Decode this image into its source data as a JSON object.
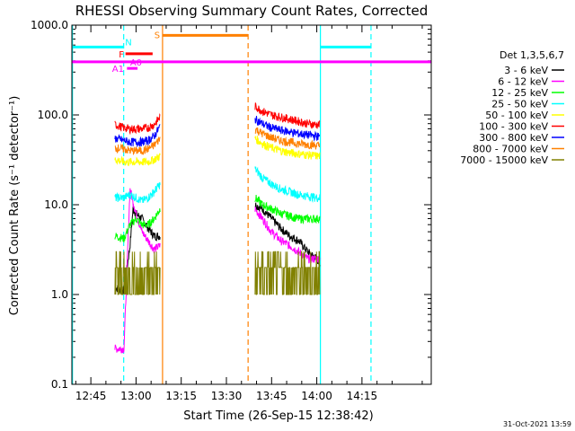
{
  "chart_data": {
    "type": "line",
    "title": "RHESSI Observing Summary Count Rates, Corrected",
    "xlabel": "Start Time (26-Sep-15 12:38:42)",
    "ylabel": "Corrected Count Rate (s⁻¹ detector⁻¹)",
    "ylog": true,
    "ylim": [
      0.1,
      1000
    ],
    "xlim_min": [
      38.7,
      158
    ],
    "x_ticks": [
      {
        "min": 45,
        "label": "12:45"
      },
      {
        "min": 60,
        "label": "13:00"
      },
      {
        "min": 75,
        "label": "13:15"
      },
      {
        "min": 90,
        "label": "13:30"
      },
      {
        "min": 105,
        "label": "13:45"
      },
      {
        "min": 120,
        "label": "14:00"
      },
      {
        "min": 135,
        "label": "14:15"
      }
    ],
    "y_ticks": [
      {
        "v": 0.1,
        "label": "0.1"
      },
      {
        "v": 1,
        "label": "1.0"
      },
      {
        "v": 10,
        "label": "10.0"
      },
      {
        "v": 100,
        "label": "100.0"
      },
      {
        "v": 1000,
        "label": "1000.0"
      }
    ],
    "legend_title": "Det 1,3,5,6,7",
    "legend_position": "right",
    "series": [
      {
        "name": "3 - 6 keV",
        "color": "#000000",
        "seg1": [
          [
            53,
            1.2
          ],
          [
            56,
            1.1
          ],
          [
            58,
            3.5
          ],
          [
            59,
            9
          ],
          [
            60,
            8
          ],
          [
            62,
            7
          ],
          [
            64,
            5.5
          ],
          [
            66,
            4.5
          ],
          [
            68,
            4.5
          ]
        ],
        "seg2": [
          [
            99.5,
            10
          ],
          [
            102,
            9
          ],
          [
            105,
            7
          ],
          [
            108,
            5.5
          ],
          [
            111,
            4.5
          ],
          [
            114,
            4
          ],
          [
            117,
            3
          ],
          [
            120,
            2.5
          ],
          [
            121,
            2.2
          ]
        ]
      },
      {
        "name": "6 - 12 keV",
        "color": "#ff00ff",
        "seg1": [
          [
            53,
            0.25
          ],
          [
            56,
            0.25
          ],
          [
            58,
            15
          ],
          [
            60,
            8
          ],
          [
            62,
            5
          ],
          [
            64,
            4
          ],
          [
            66,
            3.2
          ],
          [
            68,
            3.5
          ]
        ],
        "seg2": [
          [
            99.5,
            9
          ],
          [
            102,
            7
          ],
          [
            105,
            5
          ],
          [
            108,
            4
          ],
          [
            111,
            3.5
          ],
          [
            114,
            3
          ],
          [
            117,
            2.5
          ],
          [
            120,
            2.5
          ],
          [
            121,
            2.5
          ]
        ]
      },
      {
        "name": "12 - 25 keV",
        "color": "#00ff00",
        "seg1": [
          [
            53,
            4.5
          ],
          [
            56,
            4.2
          ],
          [
            58,
            6
          ],
          [
            60,
            7
          ],
          [
            62,
            6
          ],
          [
            64,
            6
          ],
          [
            66,
            7
          ],
          [
            68,
            9
          ]
        ],
        "seg2": [
          [
            99.5,
            12
          ],
          [
            102,
            10
          ],
          [
            105,
            9
          ],
          [
            108,
            8
          ],
          [
            111,
            7.5
          ],
          [
            114,
            7
          ],
          [
            117,
            7
          ],
          [
            120,
            7
          ],
          [
            121,
            7
          ]
        ]
      },
      {
        "name": "25 - 50 keV",
        "color": "#00ffff",
        "seg1": [
          [
            53,
            12
          ],
          [
            56,
            12
          ],
          [
            58,
            13
          ],
          [
            60,
            12
          ],
          [
            62,
            11
          ],
          [
            64,
            12
          ],
          [
            66,
            14
          ],
          [
            68,
            17
          ]
        ],
        "seg2": [
          [
            99.5,
            25
          ],
          [
            102,
            20
          ],
          [
            105,
            17
          ],
          [
            108,
            15
          ],
          [
            111,
            14
          ],
          [
            114,
            13
          ],
          [
            117,
            12.5
          ],
          [
            120,
            12
          ],
          [
            121,
            12
          ]
        ]
      },
      {
        "name": "50 - 100 keV",
        "color": "#ffff00",
        "seg1": [
          [
            53,
            32
          ],
          [
            56,
            30
          ],
          [
            58,
            30
          ],
          [
            60,
            30
          ],
          [
            62,
            30
          ],
          [
            64,
            30
          ],
          [
            66,
            32
          ],
          [
            68,
            35
          ]
        ],
        "seg2": [
          [
            99.5,
            55
          ],
          [
            102,
            48
          ],
          [
            105,
            43
          ],
          [
            108,
            40
          ],
          [
            111,
            38
          ],
          [
            114,
            37
          ],
          [
            117,
            36
          ],
          [
            120,
            35
          ],
          [
            121,
            35
          ]
        ]
      },
      {
        "name": "100 - 300 keV",
        "color": "#ff0000",
        "seg1": [
          [
            53,
            78
          ],
          [
            56,
            72
          ],
          [
            58,
            70
          ],
          [
            60,
            70
          ],
          [
            62,
            70
          ],
          [
            64,
            72
          ],
          [
            66,
            78
          ],
          [
            68,
            95
          ]
        ],
        "seg2": [
          [
            99.5,
            125
          ],
          [
            102,
            110
          ],
          [
            105,
            100
          ],
          [
            108,
            95
          ],
          [
            111,
            90
          ],
          [
            114,
            85
          ],
          [
            117,
            80
          ],
          [
            120,
            78
          ],
          [
            121,
            78
          ]
        ]
      },
      {
        "name": "300 - 800 keV",
        "color": "#0000ff",
        "seg1": [
          [
            53,
            55
          ],
          [
            56,
            52
          ],
          [
            58,
            50
          ],
          [
            60,
            50
          ],
          [
            62,
            50
          ],
          [
            64,
            52
          ],
          [
            66,
            58
          ],
          [
            68,
            75
          ]
        ],
        "seg2": [
          [
            99.5,
            90
          ],
          [
            102,
            80
          ],
          [
            105,
            72
          ],
          [
            108,
            68
          ],
          [
            111,
            65
          ],
          [
            114,
            62
          ],
          [
            117,
            60
          ],
          [
            120,
            58
          ],
          [
            121,
            57
          ]
        ]
      },
      {
        "name": "800 - 7000 keV",
        "color": "#ff8000",
        "seg1": [
          [
            53,
            43
          ],
          [
            56,
            42
          ],
          [
            58,
            40
          ],
          [
            60,
            40
          ],
          [
            62,
            40
          ],
          [
            64,
            42
          ],
          [
            66,
            46
          ],
          [
            68,
            55
          ]
        ],
        "seg2": [
          [
            99.5,
            70
          ],
          [
            102,
            62
          ],
          [
            105,
            56
          ],
          [
            108,
            52
          ],
          [
            111,
            50
          ],
          [
            114,
            48
          ],
          [
            117,
            47
          ],
          [
            120,
            46
          ],
          [
            121,
            45
          ]
        ]
      },
      {
        "name": "7000 - 15000 keV",
        "color": "#808000",
        "seg1": [
          [
            53,
            2.5
          ],
          [
            56,
            2.5
          ],
          [
            58,
            2.5
          ],
          [
            60,
            2.5
          ],
          [
            62,
            2.5
          ],
          [
            64,
            2.5
          ],
          [
            66,
            2.5
          ],
          [
            68,
            2.5
          ]
        ],
        "seg2": [
          [
            99.5,
            2.5
          ],
          [
            102,
            2.5
          ],
          [
            105,
            2.5
          ],
          [
            108,
            2.5
          ],
          [
            111,
            2.5
          ],
          [
            114,
            2.5
          ],
          [
            117,
            2.5
          ],
          [
            120,
            2.5
          ],
          [
            121,
            2.5
          ]
        ]
      }
    ],
    "vlines": [
      {
        "min": 38.9,
        "color": "#00ffff",
        "dash": false
      },
      {
        "min": 55.9,
        "color": "#00ffff",
        "dash": true
      },
      {
        "min": 68.8,
        "color": "#ff8000",
        "dash": false
      },
      {
        "min": 97.2,
        "color": "#ff8000",
        "dash": true
      },
      {
        "min": 121.2,
        "color": "#00ffff",
        "dash": false
      },
      {
        "min": 138.0,
        "color": "#00ffff",
        "dash": true
      }
    ],
    "flag_bars": [
      {
        "label": "N",
        "color": "#00ffff",
        "segments": [
          [
            38.7,
            55.9
          ],
          [
            121.2,
            138.0
          ]
        ],
        "level": 570
      },
      {
        "label": "S",
        "color": "#ff8000",
        "segments": [
          [
            68.8,
            97.2
          ]
        ],
        "level": 770
      },
      {
        "label": "F",
        "color": "#ff0000",
        "segments": [
          [
            56.5,
            65.5
          ]
        ],
        "level": 480
      },
      {
        "label": "A0",
        "color": "#ff00ff",
        "segments": [
          [
            38.7,
            158
          ]
        ],
        "level": 390
      },
      {
        "label": "A1",
        "color": "#ff00ff",
        "segments": [
          [
            57,
            60.5
          ]
        ],
        "level": 330
      }
    ],
    "timestamp": "31-Oct-2021 13:59"
  }
}
